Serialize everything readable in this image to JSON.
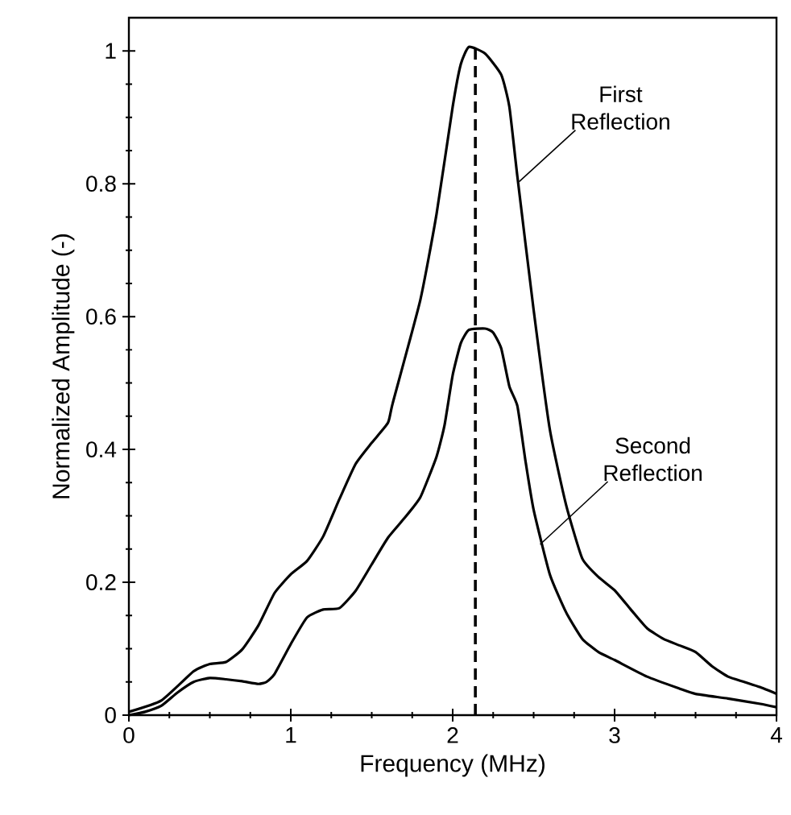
{
  "chart_data": {
    "type": "line",
    "xlabel": "Frequency (MHz)",
    "ylabel": "Normalized Amplitude (-)",
    "xlim": [
      0,
      4
    ],
    "ylim": [
      0,
      1.05
    ],
    "xticks": [
      0,
      1,
      2,
      3,
      4
    ],
    "yticks": [
      0,
      0.2,
      0.4,
      0.6,
      0.8,
      1
    ],
    "grid": false,
    "marker": "none",
    "line_style": "solid",
    "series": [
      {
        "color": "#000000",
        "x": [
          0,
          0.2,
          0.4,
          0.5,
          0.6,
          0.7,
          0.8,
          0.9,
          1.0,
          1.1,
          1.2,
          1.3,
          1.4,
          1.5,
          1.6,
          1.63,
          1.8,
          1.9,
          2.0,
          2.05,
          2.1,
          2.2,
          2.3,
          2.35,
          2.4,
          2.5,
          2.6,
          2.7,
          2.8,
          2.9,
          3.0,
          3.1,
          3.2,
          3.3,
          3.4,
          3.5,
          3.6,
          3.7,
          3.8,
          3.9,
          4.0
        ],
        "values": [
          0.005,
          0.022,
          0.066,
          0.077,
          0.08,
          0.099,
          0.135,
          0.184,
          0.212,
          0.232,
          0.269,
          0.325,
          0.378,
          0.41,
          0.44,
          0.47,
          0.625,
          0.754,
          0.916,
          0.98,
          1.006,
          0.996,
          0.964,
          0.916,
          0.81,
          0.61,
          0.43,
          0.317,
          0.236,
          0.208,
          0.188,
          0.159,
          0.131,
          0.115,
          0.105,
          0.095,
          0.074,
          0.058,
          0.05,
          0.042,
          0.032
        ]
      },
      {
        "color": "#000000",
        "x": [
          0,
          0.1,
          0.2,
          0.3,
          0.4,
          0.5,
          0.6,
          0.7,
          0.8,
          0.85,
          0.9,
          1.0,
          1.1,
          1.2,
          1.3,
          1.4,
          1.5,
          1.6,
          1.7,
          1.8,
          1.9,
          1.95,
          2.0,
          2.05,
          2.1,
          2.2,
          2.25,
          2.3,
          2.35,
          2.4,
          2.45,
          2.5,
          2.6,
          2.7,
          2.8,
          2.9,
          3.0,
          3.2,
          3.4,
          3.5,
          3.7,
          3.9,
          4.0
        ],
        "values": [
          0,
          0.005,
          0.014,
          0.034,
          0.05,
          0.056,
          0.054,
          0.051,
          0.047,
          0.05,
          0.062,
          0.107,
          0.147,
          0.159,
          0.161,
          0.187,
          0.227,
          0.267,
          0.296,
          0.328,
          0.389,
          0.437,
          0.512,
          0.56,
          0.58,
          0.582,
          0.576,
          0.552,
          0.495,
          0.465,
          0.382,
          0.309,
          0.212,
          0.155,
          0.115,
          0.095,
          0.083,
          0.058,
          0.04,
          0.032,
          0.025,
          0.017,
          0.012
        ]
      }
    ],
    "ref_lines": [
      {
        "axis": "x",
        "value": 2.14,
        "color": "#000000",
        "line_style": "dashed"
      }
    ],
    "annotations": [
      {
        "text": "First Reflection",
        "x": 2.41,
        "y": 0.803
      },
      {
        "text": "Second Reflection",
        "x": 2.54,
        "y": 0.257
      }
    ]
  }
}
